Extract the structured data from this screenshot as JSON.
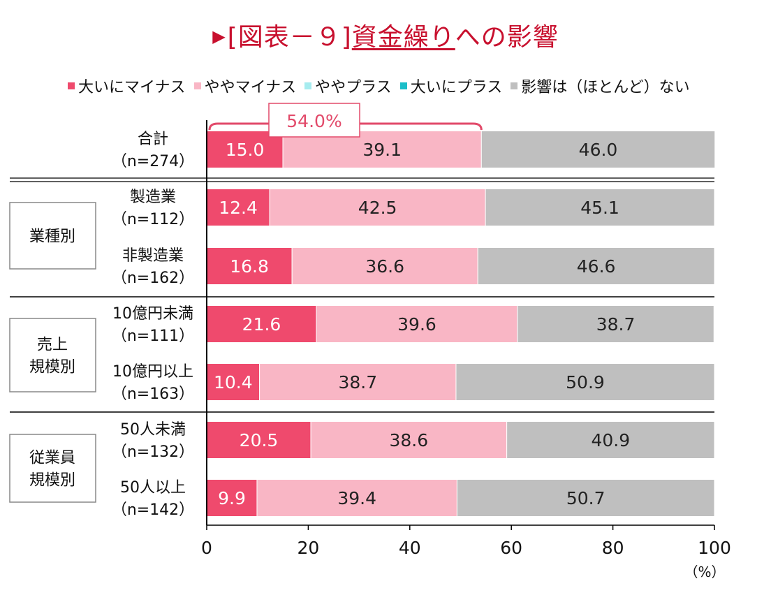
{
  "title": {
    "prefix": "[図表－９]",
    "subject": "資金繰り",
    "suffix": "への影響"
  },
  "legend": [
    {
      "label": "大いにマイナス",
      "color": "#ef4a6d"
    },
    {
      "label": "ややマイナス",
      "color": "#f9b6c5"
    },
    {
      "label": "ややプラス",
      "color": "#a6ecef"
    },
    {
      "label": "大いにプラス",
      "color": "#1bbec8"
    },
    {
      "label": "影響は（ほとんど）ない",
      "color": "#bfbfbf"
    }
  ],
  "chart_data": {
    "type": "bar",
    "orientation": "horizontal",
    "stacked": true,
    "categories": [
      {
        "label": "合計",
        "n": "（n=274）"
      },
      {
        "label": "製造業",
        "n": "（n=112）"
      },
      {
        "label": "非製造業",
        "n": "（n=162）"
      },
      {
        "label": "10億円未満",
        "n": "（n=111）"
      },
      {
        "label": "10億円以上",
        "n": "（n=163）"
      },
      {
        "label": "50人未満",
        "n": "（n=132）"
      },
      {
        "label": "50人以上",
        "n": "（n=142）"
      }
    ],
    "groups": [
      {
        "label": "業種別",
        "rows": [
          1,
          2
        ]
      },
      {
        "label": "売上\n規模別",
        "rows": [
          3,
          4
        ]
      },
      {
        "label": "従業員\n規模別",
        "rows": [
          5,
          6
        ]
      }
    ],
    "series": [
      {
        "name": "大いにマイナス",
        "color": "#ef4a6d",
        "label_color": "#ffffff",
        "values": [
          15.0,
          12.4,
          16.8,
          21.6,
          10.4,
          20.5,
          9.9
        ]
      },
      {
        "name": "ややマイナス",
        "color": "#f9b6c5",
        "label_color": "#222222",
        "values": [
          39.1,
          42.5,
          36.6,
          39.6,
          38.7,
          38.6,
          39.4
        ]
      },
      {
        "name": "ややプラス",
        "color": "#a6ecef",
        "label_color": "#222222",
        "values": [
          0,
          0,
          0,
          0,
          0,
          0,
          0
        ]
      },
      {
        "name": "大いにプラス",
        "color": "#1bbec8",
        "label_color": "#222222",
        "values": [
          0,
          0,
          0,
          0,
          0,
          0,
          0
        ]
      },
      {
        "name": "影響は（ほとんど）ない",
        "color": "#bfbfbf",
        "label_color": "#222222",
        "values": [
          46.0,
          45.1,
          46.6,
          38.7,
          50.9,
          40.9,
          50.7
        ]
      }
    ],
    "annotation": {
      "text": "54.0%",
      "row": 0,
      "from": 0,
      "to": 54.1
    },
    "xlim": [
      0,
      100
    ],
    "xticks": [
      0,
      20,
      40,
      60,
      80,
      100
    ],
    "xunit": "（%）"
  }
}
